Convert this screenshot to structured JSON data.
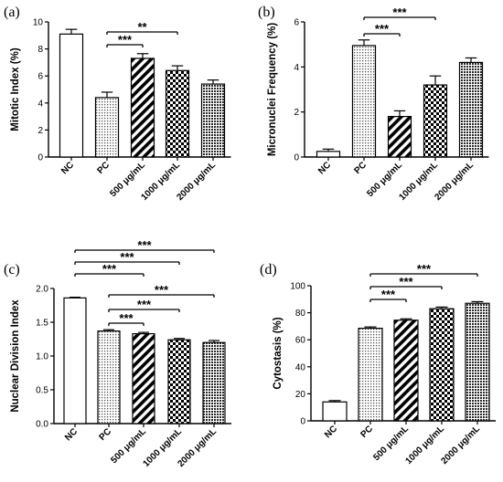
{
  "chart_data": [
    {
      "type": "bar",
      "panel": "(a)",
      "ylabel": "Mitotic Index (%)",
      "ylim": [
        0,
        10
      ],
      "yticks": [
        0,
        2,
        4,
        6,
        8,
        10
      ],
      "categories": [
        "NC",
        "PC",
        "500 μg/mL",
        "1000 μg/mL",
        "2000 μg/mL"
      ],
      "values": [
        9.1,
        4.4,
        7.3,
        6.4,
        5.4
      ],
      "errors": [
        0.35,
        0.4,
        0.35,
        0.35,
        0.3
      ],
      "patterns": [
        "white",
        "dots",
        "diag",
        "check",
        "dense"
      ],
      "significance": [
        {
          "from": 1,
          "to": 2,
          "label": "***"
        },
        {
          "from": 1,
          "to": 3,
          "label": "**"
        }
      ]
    },
    {
      "type": "bar",
      "panel": "(b)",
      "ylabel": "Micronuclei Frequency (%)",
      "ylim": [
        0,
        6
      ],
      "yticks": [
        0,
        2,
        4,
        6
      ],
      "categories": [
        "NC",
        "PC",
        "500 μg/mL",
        "1000 μg/mL",
        "2000 μg/mL"
      ],
      "values": [
        0.25,
        4.95,
        1.8,
        3.2,
        4.2
      ],
      "errors": [
        0.1,
        0.25,
        0.25,
        0.4,
        0.2
      ],
      "patterns": [
        "white",
        "dots",
        "diag",
        "check",
        "dense"
      ],
      "significance": [
        {
          "from": 1,
          "to": 2,
          "label": "***"
        },
        {
          "from": 1,
          "to": 3,
          "label": "***"
        }
      ]
    },
    {
      "type": "bar",
      "panel": "(c)",
      "ylabel": "Nuclear Division Index",
      "ylim": [
        0,
        2.0
      ],
      "yticks": [
        "0.0",
        "0.5",
        "1.0",
        "1.5",
        "2.0"
      ],
      "categories": [
        "NC",
        "PC",
        "500 μg/mL",
        "1000 μg/mL",
        "2000 μg/mL"
      ],
      "values": [
        1.86,
        1.37,
        1.33,
        1.24,
        1.2
      ],
      "errors": [
        0.01,
        0.02,
        0.02,
        0.02,
        0.03
      ],
      "patterns": [
        "white",
        "dots",
        "diag",
        "check",
        "dense"
      ],
      "significance": [
        {
          "from": 1,
          "to": 2,
          "label": "***"
        },
        {
          "from": 1,
          "to": 3,
          "label": "***"
        },
        {
          "from": 1,
          "to": 4,
          "label": "***"
        },
        {
          "from": 0,
          "to": 2,
          "label": "***"
        },
        {
          "from": 0,
          "to": 3,
          "label": "***"
        },
        {
          "from": 0,
          "to": 4,
          "label": "***"
        }
      ]
    },
    {
      "type": "bar",
      "panel": "(d)",
      "ylabel": "Cytostasis (%)",
      "ylim": [
        0,
        100
      ],
      "yticks": [
        0,
        20,
        40,
        60,
        80,
        100
      ],
      "categories": [
        "NC",
        "PC",
        "500 μg/mL",
        "1000 μg/mL",
        "2000 μg/mL"
      ],
      "values": [
        14,
        68.5,
        74.5,
        83,
        87
      ],
      "errors": [
        1.0,
        1.0,
        1.0,
        1.2,
        1.2
      ],
      "patterns": [
        "white",
        "dots",
        "diag",
        "check",
        "dense"
      ],
      "significance": [
        {
          "from": 1,
          "to": 2,
          "label": "***"
        },
        {
          "from": 1,
          "to": 3,
          "label": "***"
        },
        {
          "from": 1,
          "to": 4,
          "label": "***"
        }
      ]
    }
  ]
}
